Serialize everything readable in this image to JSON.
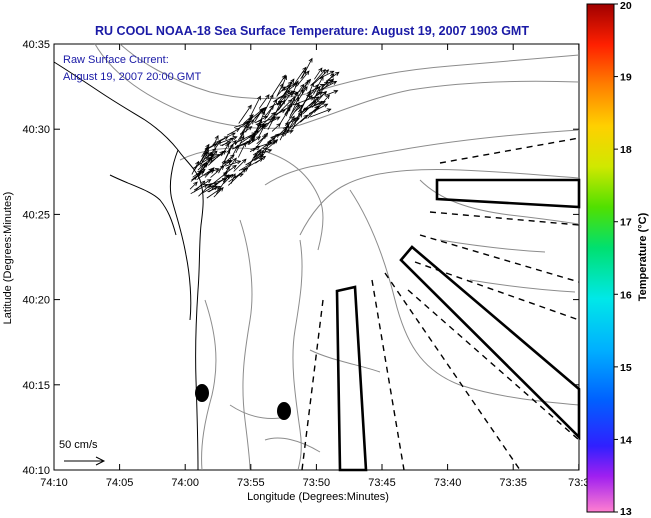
{
  "title": "RU COOL  NOAA-18  Sea Surface Temperature:  August 19, 2007 1903 GMT",
  "annotation": {
    "line1": "Raw Surface Current:",
    "line2": "August 19, 2007 20:00 GMT"
  },
  "axes": {
    "xlabel": "Longitude (Degrees:Minutes)",
    "ylabel": "Latitude (Degrees:Minutes)",
    "x_ticks": [
      "74:10",
      "74:05",
      "74:00",
      "73:55",
      "73:50",
      "73:45",
      "73:40",
      "73:35",
      "73:3"
    ],
    "y_ticks": [
      "40:35",
      "40:30",
      "40:25",
      "40:20",
      "40:15",
      "40:10"
    ]
  },
  "colorbar": {
    "title": "Temperature (°C)",
    "min": 13,
    "max": 20,
    "ticks": [
      "20",
      "19",
      "18",
      "17",
      "16",
      "15",
      "14",
      "13"
    ]
  },
  "scale": {
    "label": "50 cm/s"
  },
  "colors": {
    "title_text": "#1a1aa6",
    "coastline": "#000000",
    "bathymetry": "#8c8c8c",
    "vectors": "#000000"
  }
}
